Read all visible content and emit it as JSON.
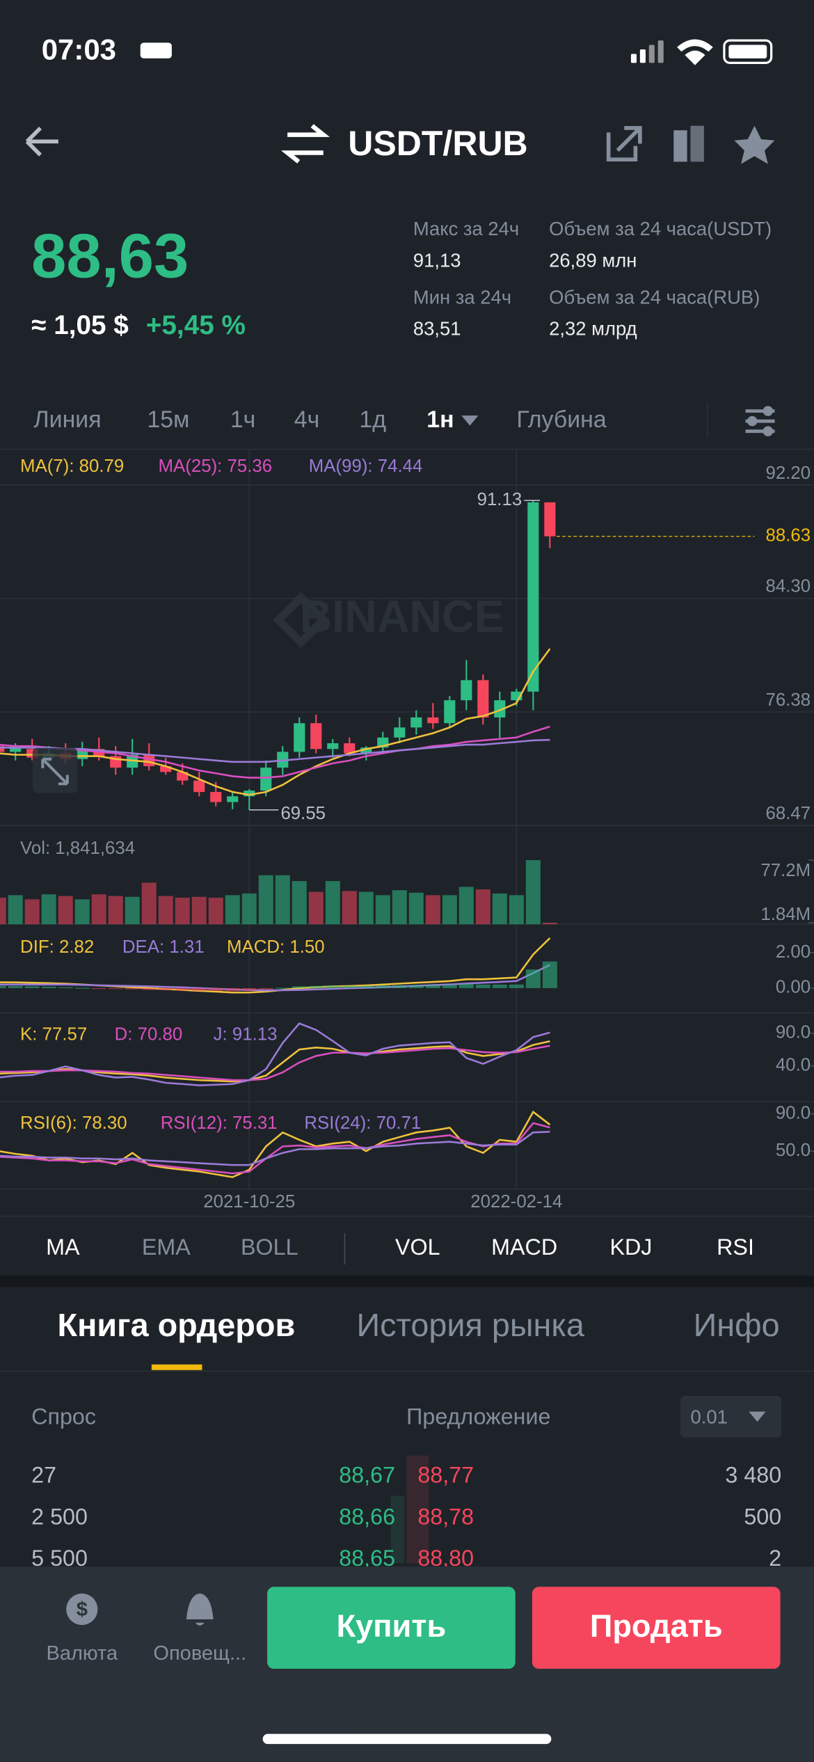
{
  "status": {
    "time": "07:03"
  },
  "header": {
    "pair": "USDT/RUB"
  },
  "price": {
    "last": "88,63",
    "approx": "≈ 1,05 $",
    "change": "+5,45 %"
  },
  "stats": [
    {
      "label": "Макс за 24ч",
      "value": "91,13"
    },
    {
      "label": "Объем за 24 часа(USDT)",
      "value": "26,89 млн"
    },
    {
      "label": "Мин за 24ч",
      "value": "83,51"
    },
    {
      "label": "Объем за 24 часа(RUB)",
      "value": "2,32 млрд"
    }
  ],
  "intervals": {
    "items": [
      "Линия",
      "15м",
      "1ч",
      "4ч",
      "1д",
      "1н",
      "Глубина"
    ],
    "active": 5
  },
  "chart": {
    "type": "candlestick",
    "watermark": "BINANCE",
    "up_color": "#2ebd85",
    "down_color": "#f6465d",
    "categories": [
      null,
      null,
      null,
      null,
      null,
      null,
      null,
      null,
      null,
      null,
      null,
      null,
      null,
      null,
      null,
      "2021-10-25",
      null,
      null,
      null,
      null,
      null,
      null,
      null,
      null,
      null,
      null,
      null,
      null,
      null,
      null,
      null,
      "2022-02-14",
      null,
      null
    ],
    "open": [
      74.0,
      73.6,
      73.8,
      73.2,
      73.5,
      73.1,
      73.8,
      73.3,
      72.5,
      73.4,
      72.6,
      72.2,
      71.6,
      70.8,
      70.1,
      70.5,
      70.9,
      72.5,
      73.6,
      75.6,
      73.8,
      74.2,
      73.5,
      73.9,
      74.6,
      75.3,
      76.0,
      75.6,
      77.2,
      78.6,
      76.0,
      77.2,
      77.8,
      91.0
    ],
    "high": [
      74.6,
      74.2,
      74.5,
      74.0,
      74.2,
      74.3,
      74.6,
      74.0,
      74.5,
      74.2,
      73.2,
      72.8,
      72.2,
      71.5,
      70.8,
      71.0,
      73.0,
      74.0,
      76.0,
      76.2,
      74.5,
      74.6,
      74.0,
      75.0,
      76.0,
      76.5,
      77.0,
      77.5,
      80.0,
      79.0,
      77.8,
      78.0,
      91.13,
      91.0
    ],
    "low": [
      73.2,
      73.0,
      73.0,
      72.5,
      72.8,
      72.6,
      73.0,
      72.0,
      72.0,
      72.3,
      72.0,
      71.3,
      70.5,
      69.8,
      69.6,
      69.55,
      70.5,
      72.0,
      73.2,
      73.5,
      73.2,
      73.3,
      73.0,
      73.5,
      74.2,
      74.8,
      75.2,
      75.3,
      76.5,
      75.5,
      74.5,
      76.8,
      76.5,
      87.8
    ],
    "close": [
      73.6,
      73.9,
      73.2,
      73.5,
      73.1,
      73.8,
      73.3,
      72.5,
      73.4,
      72.6,
      72.2,
      71.6,
      70.8,
      70.1,
      70.5,
      70.9,
      72.5,
      73.6,
      75.6,
      73.8,
      74.2,
      73.5,
      73.9,
      74.6,
      75.3,
      76.0,
      75.6,
      77.2,
      78.6,
      76.0,
      77.2,
      77.8,
      91.0,
      88.63
    ],
    "series": [
      {
        "name": "MA(7): 80.79",
        "color": "#f0c23d",
        "values": [
          73.5,
          73.4,
          73.4,
          73.4,
          73.3,
          73.3,
          73.3,
          73.1,
          73.0,
          72.9,
          72.6,
          72.2,
          71.7,
          71.2,
          70.8,
          70.6,
          70.8,
          71.3,
          72.0,
          72.6,
          73.1,
          73.5,
          73.8,
          74.0,
          74.3,
          74.6,
          74.9,
          75.3,
          75.9,
          76.1,
          76.5,
          77.0,
          79.2,
          80.79
        ]
      },
      {
        "name": "MA(25): 75.36",
        "color": "#d94fbf",
        "values": [
          74.1,
          74.0,
          74.0,
          73.9,
          73.8,
          73.7,
          73.6,
          73.5,
          73.3,
          73.1,
          72.9,
          72.6,
          72.3,
          72.1,
          71.9,
          71.8,
          71.8,
          71.9,
          72.2,
          72.5,
          72.8,
          73.0,
          73.3,
          73.5,
          73.7,
          73.8,
          74.0,
          74.1,
          74.3,
          74.4,
          74.5,
          74.6,
          75.0,
          75.36
        ]
      },
      {
        "name": "MA(99): 74.44",
        "color": "#9a7bd8",
        "values": [
          73.9,
          73.9,
          73.9,
          73.9,
          73.8,
          73.8,
          73.7,
          73.6,
          73.5,
          73.4,
          73.3,
          73.2,
          73.1,
          73.0,
          72.9,
          72.9,
          72.9,
          73.0,
          73.1,
          73.2,
          73.3,
          73.4,
          73.5,
          73.6,
          73.7,
          73.8,
          73.9,
          74.0,
          74.1,
          74.1,
          74.2,
          74.3,
          74.4,
          74.44
        ]
      }
    ],
    "ylim": [
      68.47,
      92.2
    ],
    "yticks": [
      {
        "value": 92.2,
        "label": "92.20"
      },
      {
        "value": 84.3,
        "label": "84.30"
      },
      76.38,
      68.47
    ],
    "volume": {
      "label": "Vol: 1,841,634",
      "values": [
        32,
        35,
        30,
        36,
        34,
        30,
        36,
        34,
        33,
        50,
        34,
        32,
        33,
        32,
        35,
        37,
        59,
        59,
        52,
        39,
        52,
        40,
        39,
        35,
        41,
        38,
        35,
        35,
        45,
        42,
        37,
        35,
        77.2,
        1.841634
      ],
      "ylim": [
        0,
        119
      ],
      "yticks": [
        {
          "value": 77.2,
          "label": "77.2M"
        },
        {
          "value": 1.84,
          "label": "1.84M"
        }
      ]
    },
    "macd": {
      "ylim": [
        -1.4,
        3.6
      ],
      "yticks": [
        {
          "value": 2,
          "label": "2.00"
        },
        {
          "value": 0,
          "label": "0.00"
        }
      ],
      "series": [
        {
          "name": "DIF: 2.82",
          "color": "#f0c23d",
          "values": [
            0.33,
            0.32,
            0.3,
            0.28,
            0.25,
            0.2,
            0.15,
            0.1,
            0.05,
            0,
            -0.05,
            -0.1,
            -0.15,
            -0.2,
            -0.25,
            -0.25,
            -0.2,
            -0.1,
            0,
            0.05,
            0.1,
            0.12,
            0.15,
            0.2,
            0.25,
            0.3,
            0.35,
            0.4,
            0.5,
            0.5,
            0.55,
            0.6,
            1.9,
            2.82
          ]
        },
        {
          "name": "DEA: 1.31",
          "color": "#9a7bd8",
          "values": [
            0.2,
            0.2,
            0.2,
            0.2,
            0.2,
            0.18,
            0.16,
            0.14,
            0.12,
            0.1,
            0.07,
            0.04,
            0.0,
            -0.04,
            -0.08,
            -0.11,
            -0.13,
            -0.12,
            -0.1,
            -0.07,
            -0.04,
            -0.01,
            0.02,
            0.05,
            0.09,
            0.13,
            0.17,
            0.21,
            0.26,
            0.3,
            0.35,
            0.4,
            0.85,
            1.31
          ]
        },
        {
          "name": "MACD: 1.50",
          "color": "#f0c23d",
          "values": [
            0.13,
            0.12,
            0.1,
            0.08,
            0.05,
            0.02,
            -0.01,
            -0.04,
            -0.07,
            -0.1,
            -0.12,
            -0.14,
            -0.15,
            -0.16,
            -0.17,
            -0.14,
            -0.07,
            0.02,
            0.1,
            0.12,
            0.14,
            0.13,
            0.13,
            0.15,
            0.16,
            0.17,
            0.18,
            0.19,
            0.24,
            0.2,
            0.2,
            0.2,
            1.05,
            1.5
          ]
        }
      ]
    },
    "kdj": {
      "ylim": [
        -15,
        121
      ],
      "yticks": [
        {
          "value": 90,
          "label": "90.0"
        },
        {
          "value": 40,
          "label": "40.0"
        }
      ],
      "series": [
        {
          "name": "K: 77.57",
          "color": "#f0c23d",
          "values": [
            28,
            29,
            30,
            32,
            35,
            33,
            30,
            28,
            27,
            25,
            22,
            20,
            18,
            17,
            16,
            18,
            25,
            45,
            65,
            68,
            66,
            60,
            58,
            62,
            65,
            67,
            69,
            70,
            60,
            55,
            58,
            62,
            72,
            77.57
          ]
        },
        {
          "name": "D: 70.80",
          "color": "#d94fbf",
          "values": [
            31,
            31,
            32,
            32,
            33,
            33,
            32,
            31,
            29,
            28,
            26,
            24,
            22,
            20,
            18,
            18,
            20,
            30,
            45,
            55,
            60,
            60,
            59,
            60,
            62,
            64,
            66,
            67,
            64,
            61,
            60,
            61,
            66,
            70.8
          ]
        },
        {
          "name": "J: 91.13",
          "color": "#9a7bd8",
          "values": [
            22,
            25,
            26,
            32,
            39,
            33,
            26,
            22,
            23,
            19,
            14,
            12,
            10,
            11,
            12,
            18,
            35,
            75,
            105,
            95,
            78,
            60,
            56,
            66,
            71,
            73,
            75,
            76,
            52,
            43,
            54,
            64,
            84,
            91.13
          ]
        }
      ]
    },
    "rsi": {
      "ylim": [
        9,
        103
      ],
      "yticks": [
        {
          "value": 90,
          "label": "90.0"
        },
        {
          "value": 50,
          "label": "50.0"
        }
      ],
      "series": [
        {
          "name": "RSI(6): 78.30",
          "color": "#f0c23d",
          "values": [
            50,
            47,
            45,
            40,
            42,
            38,
            40,
            36,
            48,
            35,
            32,
            30,
            28,
            25,
            22,
            30,
            55,
            70,
            62,
            55,
            58,
            60,
            50,
            60,
            65,
            70,
            72,
            75,
            55,
            48,
            62,
            60,
            92,
            78.3
          ]
        },
        {
          "name": "RSI(12): 75.31",
          "color": "#d94fbf",
          "values": [
            44,
            43,
            42,
            40,
            40,
            39,
            39,
            37,
            41,
            36,
            34,
            32,
            30,
            28,
            26,
            28,
            42,
            55,
            56,
            54,
            55,
            56,
            53,
            57,
            60,
            63,
            65,
            67,
            60,
            55,
            58,
            58,
            80,
            75.31
          ]
        },
        {
          "name": "RSI(24): 70.71",
          "color": "#9a7bd8",
          "values": [
            45,
            44,
            44,
            43,
            43,
            42,
            42,
            41,
            42,
            40,
            39,
            38,
            37,
            36,
            35,
            35,
            42,
            48,
            52,
            52,
            53,
            53,
            53,
            55,
            56,
            58,
            59,
            60,
            58,
            56,
            57,
            57,
            70,
            70.71
          ]
        }
      ]
    }
  },
  "indicators": [
    "MA",
    "EMA",
    "BOLL",
    "VOL",
    "MACD",
    "KDJ",
    "RSI"
  ],
  "tabs": [
    "Книга ордеров",
    "История рынка",
    "Инфо"
  ],
  "book": {
    "bid_header": "Спрос",
    "ask_header": "Предложение",
    "step": "0.01",
    "rows": [
      [
        "27",
        "88,67",
        "88,77",
        "3 480"
      ],
      [
        "2 500",
        "88,66",
        "88,78",
        "500"
      ],
      [
        "5 500",
        "88,65",
        "88,80",
        "2"
      ]
    ]
  },
  "nav": {
    "items": [
      "Валюта",
      "Оповещ..."
    ],
    "buy": "Купить",
    "sell": "Продать"
  }
}
